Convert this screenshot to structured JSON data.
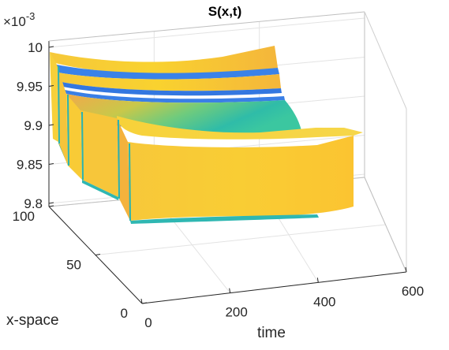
{
  "chart_data": {
    "type": "surface",
    "title": "S(x,t)",
    "xlabel": "time",
    "ylabel": "x-space",
    "zlabel": "",
    "exponent_label": "×10",
    "exponent_power": "-3",
    "x_ticks": [
      "0",
      "200",
      "400",
      "600"
    ],
    "y_ticks": [
      "0",
      "50",
      "100"
    ],
    "z_ticks": [
      "9.8",
      "9.85",
      "9.9",
      "9.95",
      "10"
    ],
    "xlim": [
      0,
      600
    ],
    "ylim": [
      0,
      100
    ],
    "zlim": [
      9.8,
      10
    ],
    "grid": true,
    "colormap": "parula",
    "colors": {
      "yellow": "#f9cf32",
      "orange": "#f5b43c",
      "green": "#5cc98a",
      "teal": "#2fb8b2",
      "blue": "#3a82e8"
    }
  }
}
